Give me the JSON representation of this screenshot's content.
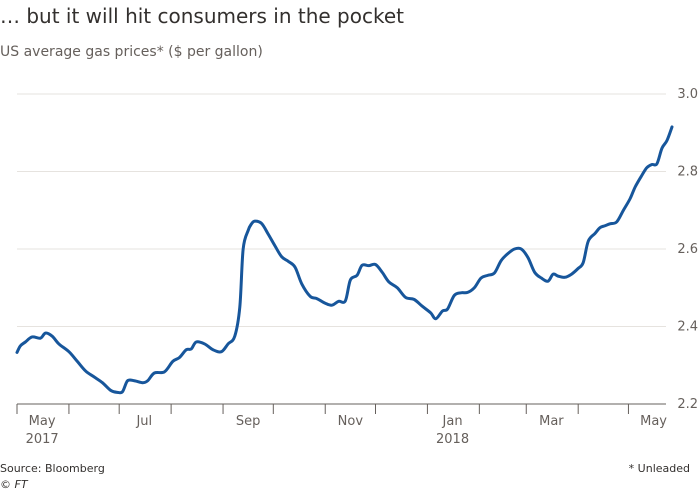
{
  "chart_data": {
    "type": "line",
    "title": "… but it will hit consumers in the pocket",
    "subtitle": "US average gas prices* ($ per gallon)",
    "source": "Source: Bloomberg",
    "credit": "© FT",
    "footnote": "* Unleaded",
    "ylim": [
      2.2,
      3.0
    ],
    "y_ticks": [
      "2.2",
      "2.4",
      "2.6",
      "2.8",
      "3.0"
    ],
    "x_start": "2017-05-01",
    "x_end": "2018-05-27",
    "x_ticks": [
      {
        "label": "May",
        "sub": "2017",
        "date": "2017-05-01"
      },
      {
        "label": "Jul",
        "sub": "",
        "date": "2017-07-01"
      },
      {
        "label": "Sep",
        "sub": "",
        "date": "2017-09-01"
      },
      {
        "label": "Nov",
        "sub": "",
        "date": "2017-11-01"
      },
      {
        "label": "Jan",
        "sub": "2018",
        "date": "2018-01-01"
      },
      {
        "label": "Mar",
        "sub": "",
        "date": "2018-03-01"
      },
      {
        "label": "May",
        "sub": "",
        "date": "2018-05-01"
      }
    ],
    "series": [
      {
        "name": "US average gas price (unleaded)",
        "color": "#17569b",
        "points": [
          [
            "2017-05-01",
            2.333
          ],
          [
            "2017-05-03",
            2.35
          ],
          [
            "2017-05-06",
            2.36
          ],
          [
            "2017-05-10",
            2.373
          ],
          [
            "2017-05-15",
            2.37
          ],
          [
            "2017-05-18",
            2.383
          ],
          [
            "2017-05-22",
            2.375
          ],
          [
            "2017-05-26",
            2.355
          ],
          [
            "2017-06-01",
            2.335
          ],
          [
            "2017-06-06",
            2.31
          ],
          [
            "2017-06-11",
            2.285
          ],
          [
            "2017-06-16",
            2.27
          ],
          [
            "2017-06-21",
            2.255
          ],
          [
            "2017-06-26",
            2.235
          ],
          [
            "2017-06-30",
            2.23
          ],
          [
            "2017-07-03",
            2.232
          ],
          [
            "2017-07-06",
            2.26
          ],
          [
            "2017-07-10",
            2.26
          ],
          [
            "2017-07-15",
            2.255
          ],
          [
            "2017-07-18",
            2.26
          ],
          [
            "2017-07-22",
            2.28
          ],
          [
            "2017-07-28",
            2.283
          ],
          [
            "2017-08-02",
            2.31
          ],
          [
            "2017-08-06",
            2.32
          ],
          [
            "2017-08-10",
            2.34
          ],
          [
            "2017-08-13",
            2.342
          ],
          [
            "2017-08-16",
            2.36
          ],
          [
            "2017-08-21",
            2.355
          ],
          [
            "2017-08-26",
            2.34
          ],
          [
            "2017-08-31",
            2.335
          ],
          [
            "2017-09-04",
            2.355
          ],
          [
            "2017-09-08",
            2.375
          ],
          [
            "2017-09-11",
            2.45
          ],
          [
            "2017-09-13",
            2.6
          ],
          [
            "2017-09-16",
            2.648
          ],
          [
            "2017-09-18",
            2.665
          ],
          [
            "2017-09-20",
            2.672
          ],
          [
            "2017-09-24",
            2.666
          ],
          [
            "2017-09-28",
            2.638
          ],
          [
            "2017-10-02",
            2.608
          ],
          [
            "2017-10-06",
            2.58
          ],
          [
            "2017-10-10",
            2.568
          ],
          [
            "2017-10-14",
            2.553
          ],
          [
            "2017-10-18",
            2.51
          ],
          [
            "2017-10-23",
            2.478
          ],
          [
            "2017-10-27",
            2.472
          ],
          [
            "2017-11-01",
            2.46
          ],
          [
            "2017-11-05",
            2.455
          ],
          [
            "2017-11-09",
            2.465
          ],
          [
            "2017-11-13",
            2.466
          ],
          [
            "2017-11-16",
            2.52
          ],
          [
            "2017-11-20",
            2.532
          ],
          [
            "2017-11-23",
            2.558
          ],
          [
            "2017-11-27",
            2.557
          ],
          [
            "2017-12-01",
            2.56
          ],
          [
            "2017-12-05",
            2.54
          ],
          [
            "2017-12-09",
            2.515
          ],
          [
            "2017-12-14",
            2.5
          ],
          [
            "2017-12-19",
            2.475
          ],
          [
            "2017-12-24",
            2.47
          ],
          [
            "2017-12-29",
            2.452
          ],
          [
            "2018-01-03",
            2.435
          ],
          [
            "2018-01-06",
            2.42
          ],
          [
            "2018-01-10",
            2.44
          ],
          [
            "2018-01-13",
            2.445
          ],
          [
            "2018-01-17",
            2.48
          ],
          [
            "2018-01-21",
            2.487
          ],
          [
            "2018-01-25",
            2.488
          ],
          [
            "2018-01-29",
            2.5
          ],
          [
            "2018-02-02",
            2.525
          ],
          [
            "2018-02-06",
            2.532
          ],
          [
            "2018-02-10",
            2.538
          ],
          [
            "2018-02-14",
            2.57
          ],
          [
            "2018-02-18",
            2.588
          ],
          [
            "2018-02-22",
            2.6
          ],
          [
            "2018-02-26",
            2.6
          ],
          [
            "2018-03-02",
            2.578
          ],
          [
            "2018-03-06",
            2.54
          ],
          [
            "2018-03-10",
            2.525
          ],
          [
            "2018-03-14",
            2.517
          ],
          [
            "2018-03-17",
            2.535
          ],
          [
            "2018-03-20",
            2.53
          ],
          [
            "2018-03-24",
            2.527
          ],
          [
            "2018-03-28",
            2.535
          ],
          [
            "2018-04-01",
            2.55
          ],
          [
            "2018-04-04",
            2.565
          ],
          [
            "2018-04-07",
            2.62
          ],
          [
            "2018-04-11",
            2.64
          ],
          [
            "2018-04-14",
            2.655
          ],
          [
            "2018-04-17",
            2.66
          ],
          [
            "2018-04-20",
            2.665
          ],
          [
            "2018-04-24",
            2.67
          ],
          [
            "2018-04-28",
            2.7
          ],
          [
            "2018-05-02",
            2.73
          ],
          [
            "2018-05-05",
            2.76
          ],
          [
            "2018-05-09",
            2.79
          ],
          [
            "2018-05-12",
            2.81
          ],
          [
            "2018-05-15",
            2.818
          ],
          [
            "2018-05-18",
            2.82
          ],
          [
            "2018-05-21",
            2.86
          ],
          [
            "2018-05-24",
            2.88
          ],
          [
            "2018-05-27",
            2.915
          ]
        ]
      }
    ]
  }
}
